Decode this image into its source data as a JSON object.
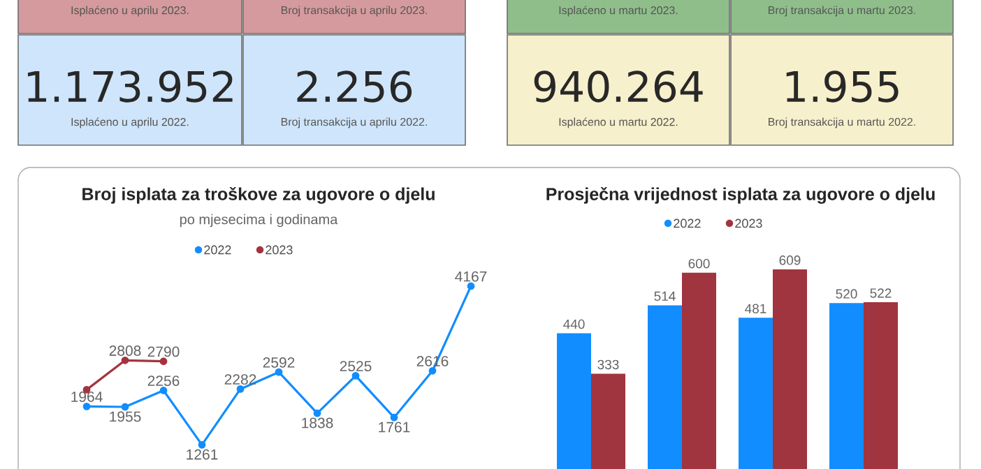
{
  "chart_data": [
    {
      "type": "other",
      "annotations": [
        "Isplaćeno u aprilu 2023.",
        "Broj transakcija u aprilu 2023.",
        "1.173.952",
        "Isplaćeno u aprilu 2022.",
        "2.256",
        "Broj transakcija u aprilu 2022.",
        "Isplaćeno u martu 2023.",
        "Broj transakcija u martu 2023.",
        "940.264",
        "Isplaćeno u martu 2022.",
        "1.955",
        "Broj transakcija u martu 2022."
      ],
      "colors": [
        "#d59a9d",
        "#d59a9d",
        "#cfe5fb",
        "#cfe5fb",
        "#8fbe8b",
        "#8fbe8b",
        "#f7f0cc",
        "#f7f0cc"
      ]
    },
    {
      "type": "line",
      "title": "Broj isplata za troškove za ugovore o djelu",
      "subtitle": "po mjesecima i godinama",
      "categories": [
        null,
        null,
        null,
        null,
        null,
        null,
        null,
        null,
        null,
        null,
        null,
        null
      ],
      "legend": "top",
      "marker": "circle",
      "series": [
        {
          "name": "2022",
          "color": "#118dff",
          "values": [
            null,
            1964,
            1955,
            2256,
            1261,
            2282,
            2592,
            1838,
            2525,
            1761,
            2616,
            4167
          ],
          "value_labels": [
            null,
            "1964",
            "1955",
            "2256",
            "1261",
            "2282",
            "2592",
            "1838",
            "2525",
            "1761",
            "2616",
            "4167"
          ]
        },
        {
          "name": "2023",
          "color": "#a3343f",
          "values": [
            null,
            2270,
            2808,
            2790,
            null,
            null,
            null,
            null,
            null,
            null,
            null,
            null
          ],
          "value_labels": [
            null,
            null,
            "2808",
            "2790",
            null,
            null,
            null,
            null,
            null,
            null,
            null,
            null
          ]
        }
      ]
    },
    {
      "type": "bar",
      "title": "Prosječna vrijednost isplata za ugovore o djelu",
      "categories": [
        null,
        null,
        null,
        null
      ],
      "legend": "top",
      "data_labels": true,
      "series": [
        {
          "name": "2022",
          "color": "#118dff",
          "values": [
            440,
            514,
            481,
            520
          ]
        },
        {
          "name": "2023",
          "color": "#a0343f",
          "values": [
            333,
            600,
            609,
            522
          ]
        }
      ]
    }
  ]
}
